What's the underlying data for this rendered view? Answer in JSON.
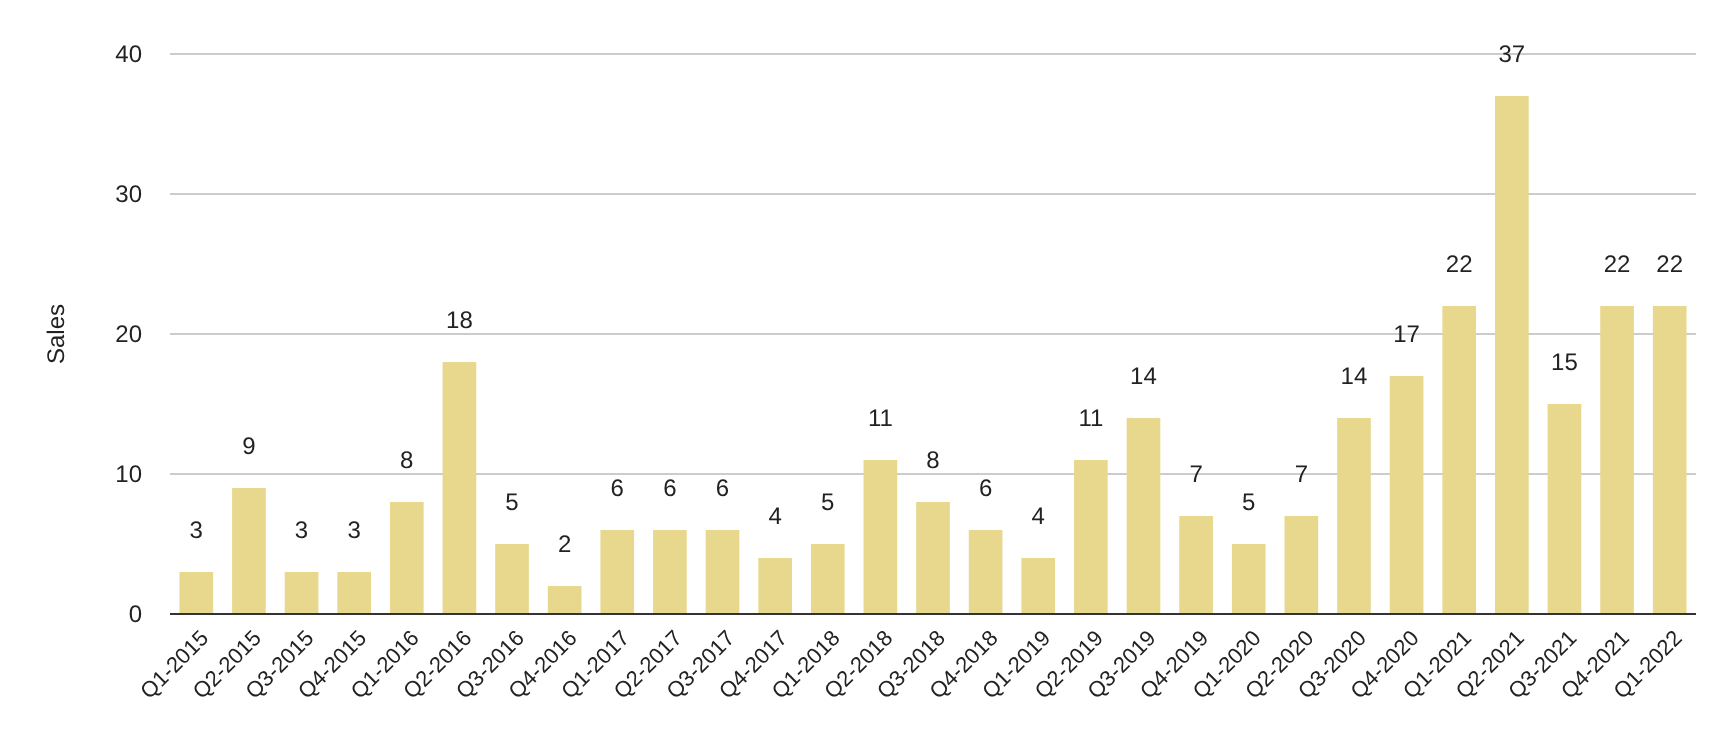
{
  "chart_data": {
    "type": "bar",
    "ylabel": "Sales",
    "categories": [
      "Q1-2015",
      "Q2-2015",
      "Q3-2015",
      "Q4-2015",
      "Q1-2016",
      "Q2-2016",
      "Q3-2016",
      "Q4-2016",
      "Q1-2017",
      "Q2-2017",
      "Q3-2017",
      "Q4-2017",
      "Q1-2018",
      "Q2-2018",
      "Q3-2018",
      "Q4-2018",
      "Q1-2019",
      "Q2-2019",
      "Q3-2019",
      "Q4-2019",
      "Q1-2020",
      "Q2-2020",
      "Q3-2020",
      "Q4-2020",
      "Q1-2021",
      "Q2-2021",
      "Q3-2021",
      "Q4-2021",
      "Q1-2022"
    ],
    "values": [
      3,
      9,
      3,
      3,
      8,
      18,
      5,
      2,
      6,
      6,
      6,
      4,
      5,
      11,
      8,
      6,
      4,
      11,
      14,
      7,
      5,
      7,
      14,
      17,
      22,
      37,
      15,
      22,
      22
    ],
    "color": "#e8d88e",
    "ylim": [
      0,
      40
    ],
    "yticks": [
      0,
      10,
      20,
      30,
      40
    ],
    "grid": "y",
    "data_labels": true
  }
}
